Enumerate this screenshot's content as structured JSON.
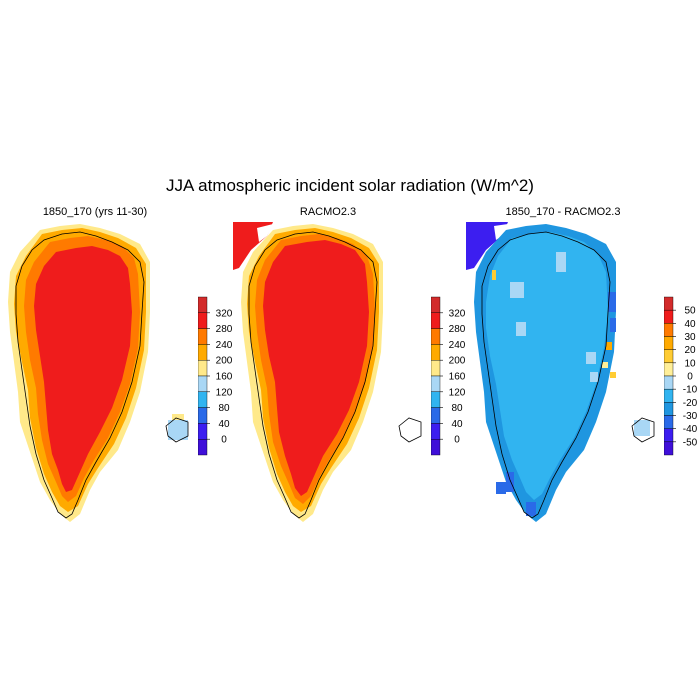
{
  "title": "JJA atmospheric incident solar radiation (W/m^2)",
  "panels": [
    {
      "title": "1850_170 (yrs 11-30)",
      "colorbar": {
        "labels": [
          "320",
          "280",
          "240",
          "200",
          "160",
          "120",
          "80",
          "40",
          "0"
        ],
        "colors": [
          "#d32b2b",
          "#ef1c1c",
          "#ff7a00",
          "#ffaa00",
          "#ffe98a",
          "#a9d7f5",
          "#31b4f0",
          "#2a6ae8",
          "#3c1ef0",
          "#3f0fd9"
        ]
      }
    },
    {
      "title": "RACMO2.3",
      "colorbar": {
        "labels": [
          "320",
          "280",
          "240",
          "200",
          "160",
          "120",
          "80",
          "40",
          "0"
        ],
        "colors": [
          "#d32b2b",
          "#ef1c1c",
          "#ff7a00",
          "#ffaa00",
          "#ffe98a",
          "#a9d7f5",
          "#31b4f0",
          "#2a6ae8",
          "#3c1ef0",
          "#3f0fd9"
        ]
      }
    },
    {
      "title": "1850_170 - RACMO2.3",
      "colorbar": {
        "labels": [
          "50",
          "40",
          "30",
          "20",
          "10",
          "0",
          "-10",
          "-20",
          "-30",
          "-40",
          "-50"
        ],
        "colors": [
          "#d32b2b",
          "#ef1c1c",
          "#ff7a00",
          "#ffaa00",
          "#ffcc33",
          "#ffef99",
          "#a9d7f5",
          "#31b4f0",
          "#1f96e0",
          "#2a6ae8",
          "#3c1ef0",
          "#3f0fd9"
        ]
      }
    }
  ]
}
